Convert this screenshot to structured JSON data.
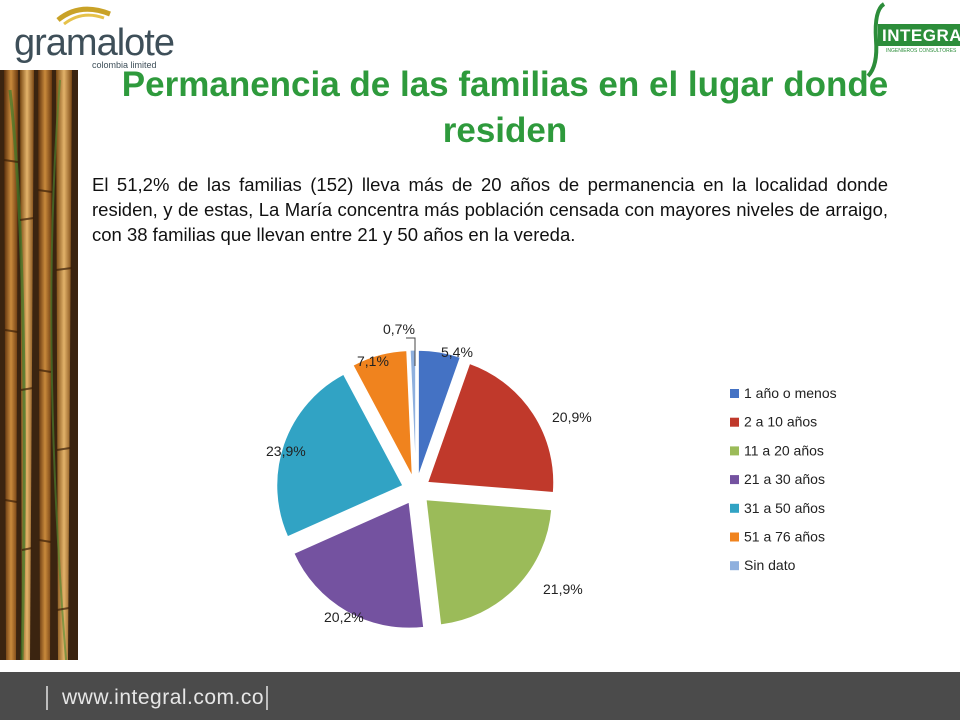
{
  "logo_left": {
    "name": "gramalote",
    "sub": "colombia limited"
  },
  "logo_right": {
    "name": "INTEGRAL",
    "sub": "INGENIEROS CONSULTORES"
  },
  "title": "Permanencia de las familias en el lugar donde residen",
  "body_text": "El 51,2% de las familias (152) lleva más de 20 años de permanencia en la localidad donde residen, y de estas, La María concentra más población censada con mayores niveles de arraigo, con 38 familias que llevan entre 21 y 50 años en la vereda.",
  "chart_data": {
    "type": "pie",
    "exploded": true,
    "legend_position": "right",
    "categories": [
      "1 año o menos",
      "2 a 10 años",
      "11 a 20 años",
      "21 a 30 años",
      "31 a 50 años",
      "51 a 76 años",
      "Sin dato"
    ],
    "values": [
      5.4,
      20.9,
      21.9,
      20.2,
      23.9,
      7.1,
      0.7
    ],
    "labels": [
      "5,4%",
      "20,9%",
      "21,9%",
      "20,2%",
      "23,9%",
      "7,1%",
      "0,7%"
    ],
    "colors": [
      "#4472c4",
      "#c0392b",
      "#9bbb59",
      "#7452a0",
      "#31a3c4",
      "#f0831e",
      "#8fb0de"
    ]
  },
  "footer": {
    "url": "www.integral.com.co"
  }
}
